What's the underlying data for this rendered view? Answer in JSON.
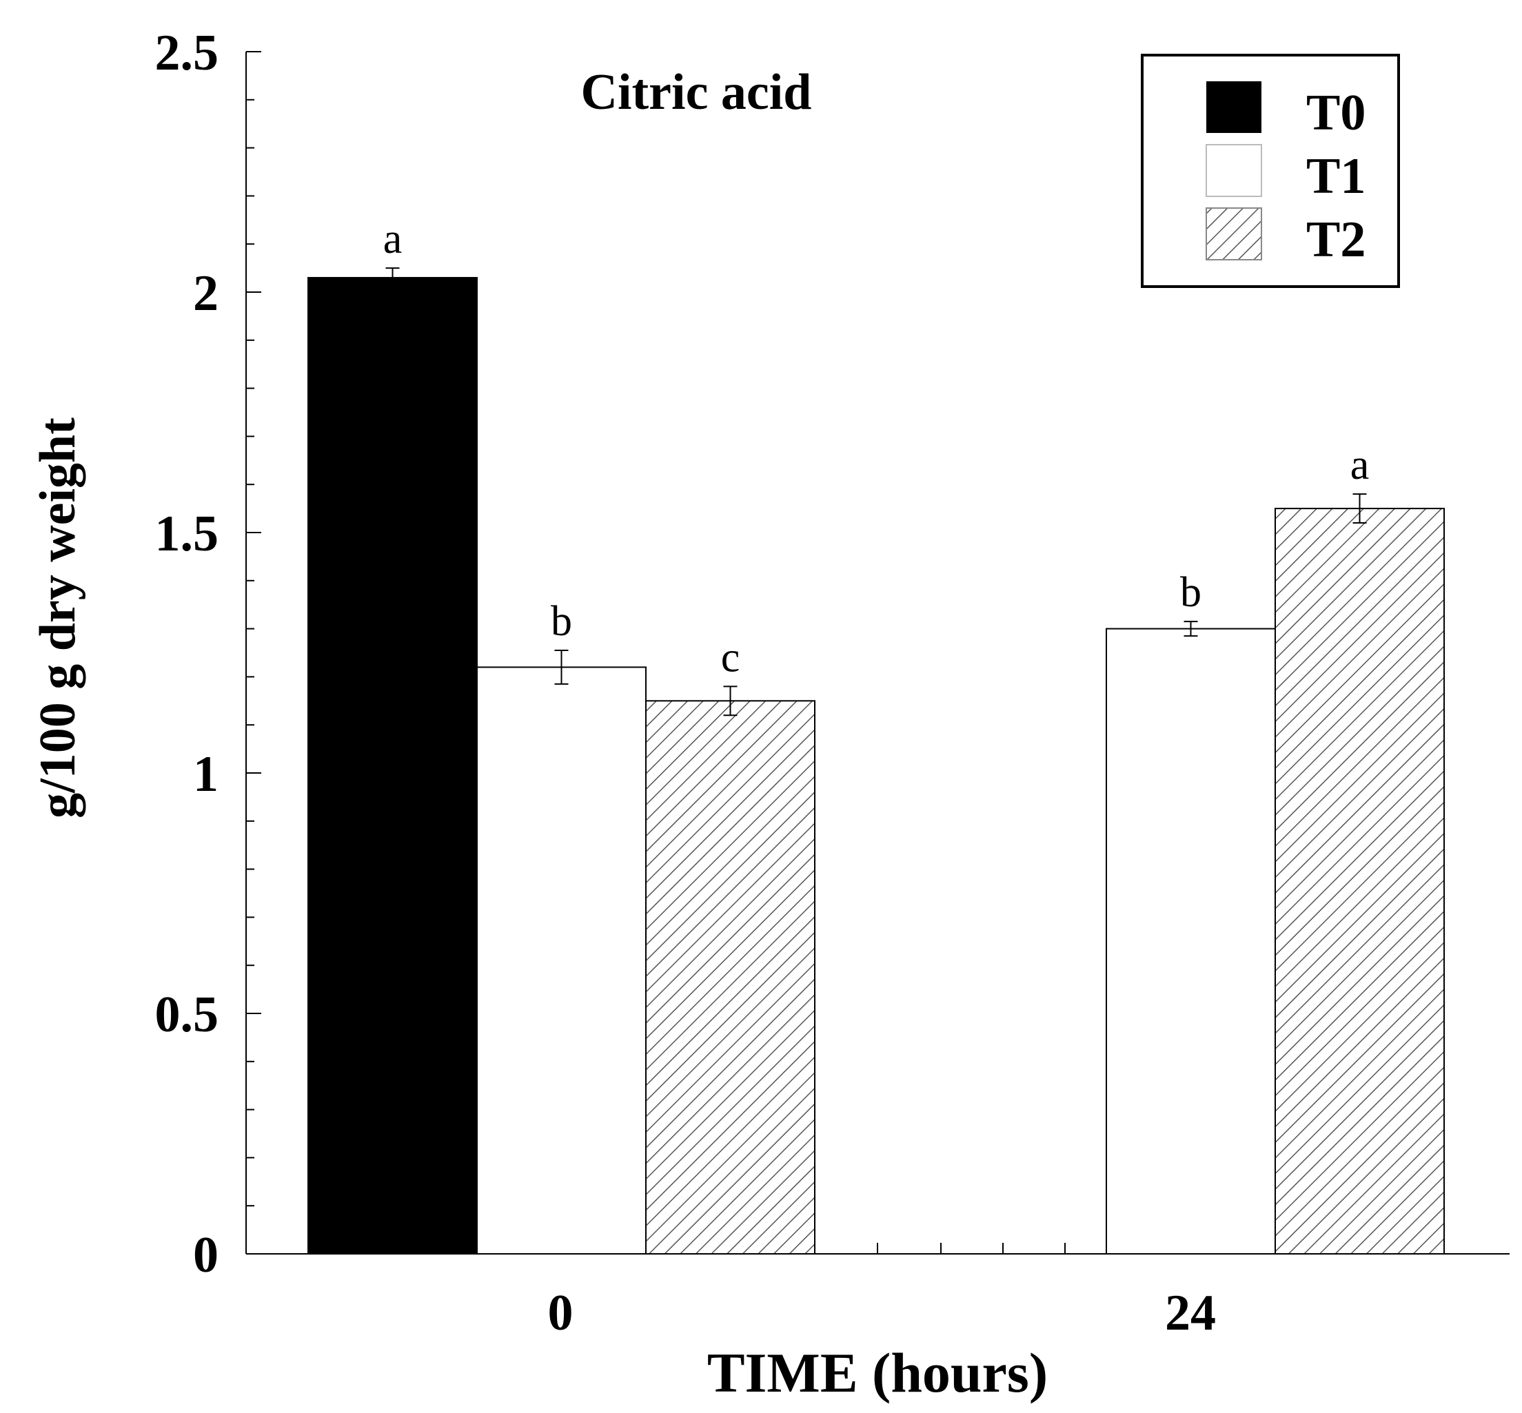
{
  "chart_data": {
    "type": "bar",
    "title": "Citric acid",
    "xlabel": "TIME (hours)",
    "ylabel": "g/100 g dry weight",
    "ylim": [
      0,
      2.5
    ],
    "yticks": [
      "0",
      "0.5",
      "1",
      "1.5",
      "2",
      "2.5"
    ],
    "categories": [
      "0",
      "24"
    ],
    "series": [
      {
        "name": "T0",
        "fill": "solid",
        "values": [
          2.03,
          null
        ],
        "errors": [
          0.02,
          null
        ],
        "labels": [
          "a",
          null
        ]
      },
      {
        "name": "T1",
        "fill": "white",
        "values": [
          1.22,
          1.3
        ],
        "errors": [
          0.035,
          0.015
        ],
        "labels": [
          "b",
          "b"
        ]
      },
      {
        "name": "T2",
        "fill": "hatched",
        "values": [
          1.15,
          1.55
        ],
        "errors": [
          0.03,
          0.03
        ],
        "labels": [
          "c",
          "a"
        ]
      }
    ],
    "legend": {
      "position": "top-right",
      "entries": [
        "T0",
        "T1",
        "T2"
      ]
    },
    "grid": false
  },
  "colors": {
    "axis": "#000000",
    "solid": "#000000",
    "white": "#ffffff",
    "hatch": "#555555",
    "text": "#000000"
  }
}
